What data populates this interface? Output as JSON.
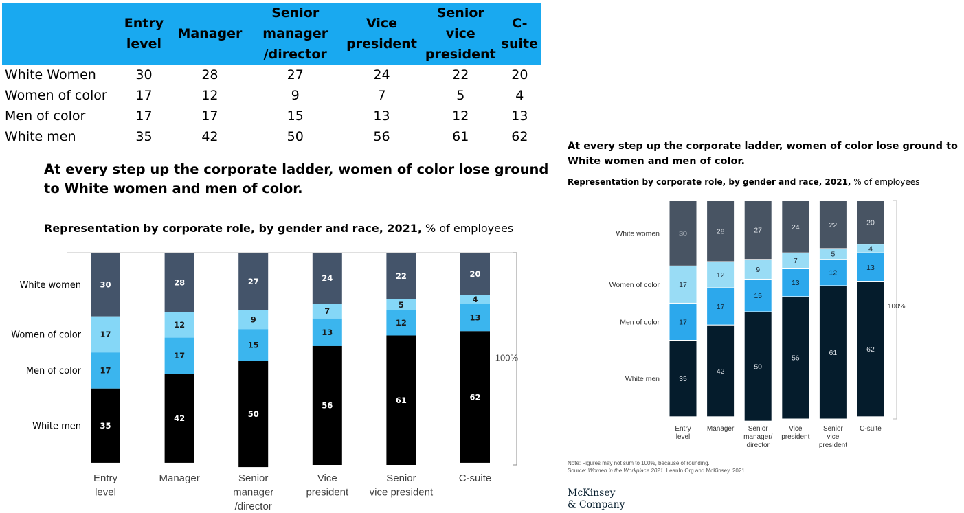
{
  "table": {
    "headers": [
      [
        "Entry",
        "level"
      ],
      [
        "Manager"
      ],
      [
        "Senior",
        "manager",
        "/director"
      ],
      [
        "Vice",
        "president"
      ],
      [
        "Senior",
        "vice",
        "president"
      ],
      [
        "C-suite"
      ]
    ],
    "rows": [
      {
        "label": "White Women",
        "values": [
          "30",
          "28",
          "27",
          "24",
          "22",
          "20"
        ]
      },
      {
        "label": "Women of color",
        "values": [
          "17",
          "12",
          "9",
          "7",
          "5",
          "4"
        ]
      },
      {
        "label": "Men of color",
        "values": [
          "17",
          "17",
          "15",
          "13",
          "12",
          "13"
        ]
      },
      {
        "label": "White men",
        "values": [
          "35",
          "42",
          "50",
          "56",
          "61",
          "62"
        ]
      }
    ],
    "header_color": "#19a9f0"
  },
  "left": {
    "title": "At every step up the corporate ladder, women of color lose ground to White women and men of color.",
    "subtitle_bold": "Representation by corporate role, by gender and race, 2021,",
    "subtitle_rest": " % of employees"
  },
  "right": {
    "title": "At every step up the corporate ladder, women of color lose ground to White women and men of color.",
    "subtitle_bold": "Representation by corporate role, by gender and race, 2021,",
    "subtitle_rest": " % of employees",
    "note": "Note: Figures may not sum to 100%, because of rounding.",
    "source_prefix": "Source: ",
    "source_italic": "Women in the Workplace 2021",
    "source_rest": ", LeanIn.Org and McKinsey, 2021",
    "logo_line1": "McKinsey",
    "logo_line2": "& Company"
  },
  "chart_data": [
    {
      "type": "bar",
      "stacked": true,
      "categories": [
        [
          "Entry",
          "level"
        ],
        [
          "Manager"
        ],
        [
          "Senior",
          "manager",
          "/director"
        ],
        [
          "Vice",
          "president"
        ],
        [
          "Senior",
          "vice president"
        ],
        [
          "C-suite"
        ]
      ],
      "series": [
        {
          "name": "White women",
          "values": [
            30,
            28,
            27,
            24,
            22,
            20
          ],
          "color": "#44546a",
          "label_color": "#ffffff"
        },
        {
          "name": "Women of color",
          "values": [
            17,
            12,
            9,
            7,
            5,
            4
          ],
          "color": "#85d7f7",
          "label_color": "#1a1a1a"
        },
        {
          "name": "Men of color",
          "values": [
            17,
            17,
            15,
            13,
            12,
            13
          ],
          "color": "#3bb5ee",
          "label_color": "#1a1a1a"
        },
        {
          "name": "White men",
          "values": [
            35,
            42,
            50,
            56,
            61,
            62
          ],
          "color": "#000000",
          "label_color": "#ffffff"
        }
      ],
      "bracket_label": "100%",
      "ylim": [
        0,
        100
      ],
      "legend": "left"
    },
    {
      "type": "bar",
      "stacked": true,
      "categories": [
        [
          "Entry",
          "level"
        ],
        [
          "Manager"
        ],
        [
          "Senior",
          "manager/",
          "director"
        ],
        [
          "Vice",
          "president"
        ],
        [
          "Senior",
          "vice",
          "president"
        ],
        [
          "C-suite"
        ]
      ],
      "series": [
        {
          "name": "White women",
          "values": [
            30,
            28,
            27,
            24,
            22,
            20
          ],
          "color": "#485463",
          "label_color": "#dfe3e8"
        },
        {
          "name": "Women of color",
          "values": [
            17,
            12,
            9,
            7,
            5,
            4
          ],
          "color": "#99dcf5",
          "label_color": "#1f2a36"
        },
        {
          "name": "Men of color",
          "values": [
            17,
            17,
            15,
            13,
            12,
            13
          ],
          "color": "#2ca8ec",
          "label_color": "#10202e"
        },
        {
          "name": "White men",
          "values": [
            35,
            42,
            50,
            56,
            61,
            62
          ],
          "color": "#051c2c",
          "label_color": "#d8dde3"
        }
      ],
      "bracket_label": "100%",
      "ylim": [
        0,
        100
      ],
      "legend": "left"
    }
  ]
}
